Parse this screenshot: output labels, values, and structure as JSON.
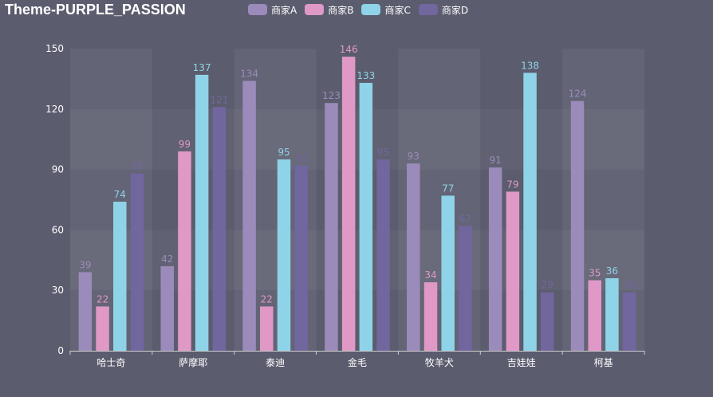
{
  "title": "Theme-PURPLE_PASSION",
  "legend": [
    "商家A",
    "商家B",
    "商家C",
    "商家D"
  ],
  "colors": [
    "#9b8bba",
    "#e098c7",
    "#8fd3e8",
    "#71669e"
  ],
  "chart_data": {
    "type": "bar",
    "title": "Theme-PURPLE_PASSION",
    "categories": [
      "哈士奇",
      "萨摩耶",
      "泰迪",
      "金毛",
      "牧羊犬",
      "吉娃娃",
      "柯基"
    ],
    "series": [
      {
        "name": "商家A",
        "values": [
          39,
          42,
          134,
          123,
          93,
          91,
          124
        ]
      },
      {
        "name": "商家B",
        "values": [
          22,
          99,
          22,
          146,
          34,
          79,
          35
        ]
      },
      {
        "name": "商家C",
        "values": [
          74,
          137,
          95,
          133,
          77,
          138,
          36
        ]
      },
      {
        "name": "商家D",
        "values": [
          88,
          121,
          92,
          95,
          62,
          29,
          29
        ]
      }
    ],
    "yticks": [
      0,
      30,
      60,
      90,
      120,
      150
    ],
    "ylim": [
      0,
      150
    ],
    "legend_position": "top"
  }
}
